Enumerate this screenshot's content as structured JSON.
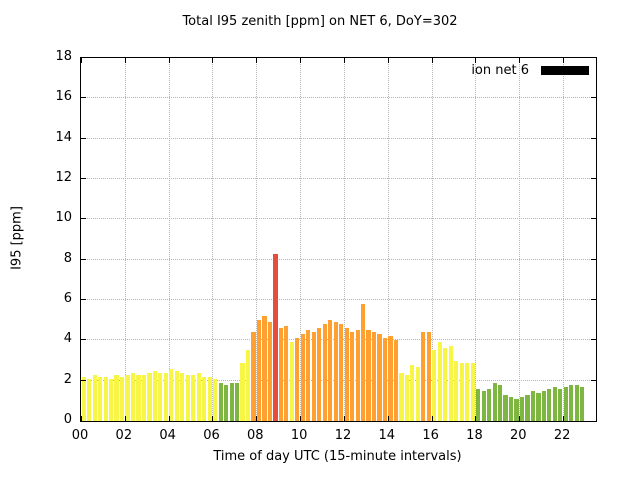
{
  "title": "Total I95 zenith [ppm] on NET 6, DoY=302",
  "legend": {
    "label": "ion net 6",
    "swatch_color": "#000000"
  },
  "chart_data": {
    "type": "bar",
    "title": "Total I95 zenith [ppm] on NET 6, DoY=302",
    "xlabel": "Time of day UTC (15-minute intervals)",
    "ylabel": "I95 [ppm]",
    "xlim": [
      0,
      23.5
    ],
    "ylim": [
      0,
      18
    ],
    "y_tick_step": 2,
    "x_tick_hours": [
      0,
      2,
      4,
      6,
      8,
      10,
      12,
      14,
      16,
      18,
      20,
      22
    ],
    "x_tick_labels": [
      "00",
      "02",
      "04",
      "06",
      "08",
      "10",
      "12",
      "14",
      "16",
      "18",
      "20",
      "22"
    ],
    "start_hour": 0,
    "interval_hours": 0.25,
    "values": [
      2.2,
      2.1,
      2.3,
      2.2,
      2.2,
      2.1,
      2.3,
      2.2,
      2.3,
      2.4,
      2.3,
      2.3,
      2.4,
      2.5,
      2.4,
      2.4,
      2.6,
      2.5,
      2.4,
      2.3,
      2.3,
      2.4,
      2.2,
      2.2,
      2.1,
      1.9,
      1.8,
      1.9,
      1.9,
      2.9,
      3.5,
      4.4,
      5.0,
      5.2,
      4.9,
      8.3,
      4.6,
      4.7,
      3.9,
      4.1,
      4.3,
      4.5,
      4.4,
      4.6,
      4.8,
      5.0,
      4.9,
      4.8,
      4.6,
      4.4,
      4.5,
      5.8,
      4.5,
      4.4,
      4.3,
      4.1,
      4.2,
      4.0,
      2.4,
      2.3,
      2.8,
      2.7,
      4.4,
      4.4,
      3.5,
      3.9,
      3.6,
      3.7,
      3.0,
      2.9,
      2.9,
      2.9,
      1.6,
      1.5,
      1.6,
      1.9,
      1.8,
      1.3,
      1.2,
      1.1,
      1.2,
      1.3,
      1.5,
      1.4,
      1.5,
      1.6,
      1.7,
      1.6,
      1.7,
      1.8,
      1.8,
      1.7
    ],
    "color_thresholds": [
      {
        "max": 2,
        "color": "#7db742"
      },
      {
        "max": 4,
        "color": "#f7f545"
      },
      {
        "max": 6,
        "color": "#ffa030"
      },
      {
        "max": 100,
        "color": "#e74c3c"
      }
    ],
    "grid": true,
    "grid_color": "#b5b5b5",
    "legend_position": "top-right"
  }
}
